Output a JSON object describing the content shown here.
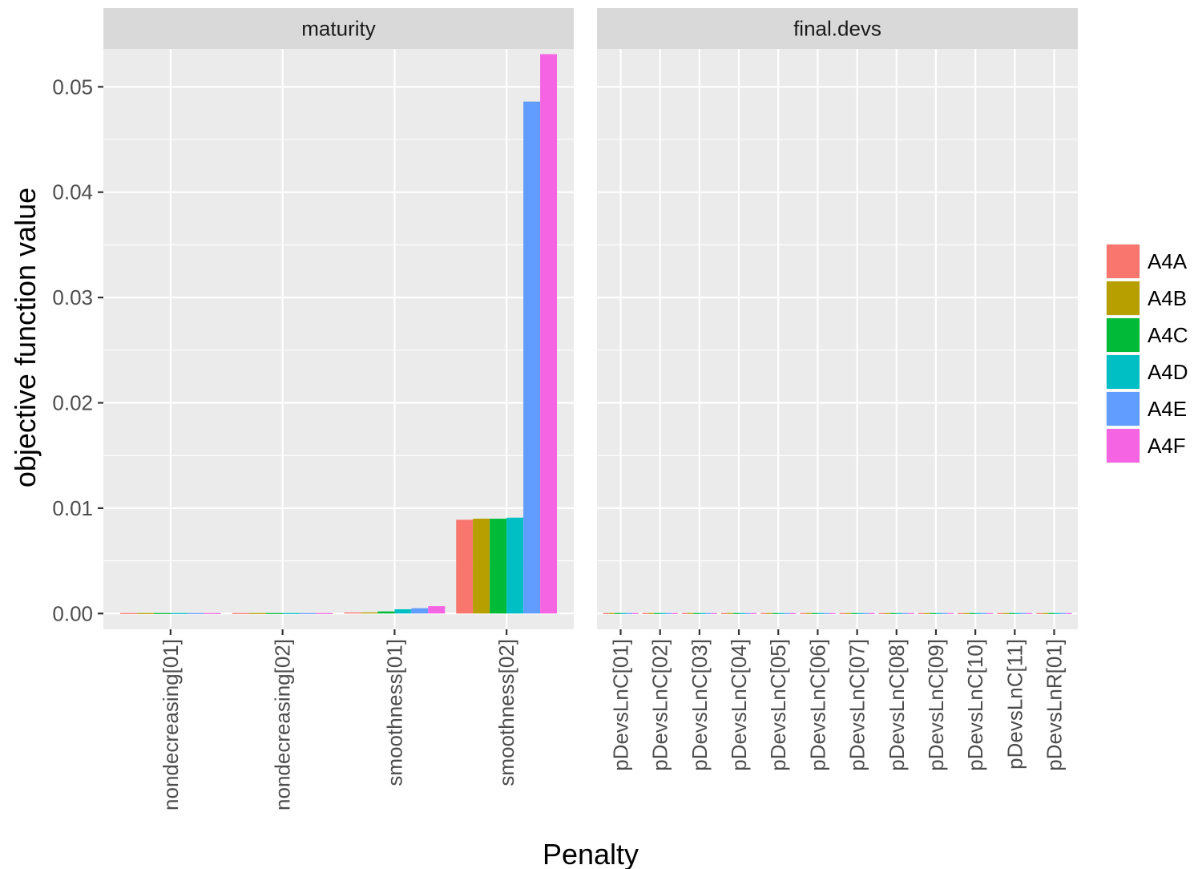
{
  "chart_data": {
    "type": "bar",
    "xlabel": "Penalty",
    "ylabel": "objective function value",
    "ylim": [
      -0.0015,
      0.0536
    ],
    "yticks": [
      0.0,
      0.01,
      0.02,
      0.03,
      0.04,
      0.05
    ],
    "ytick_labels": [
      "0.00",
      "0.01",
      "0.02",
      "0.03",
      "0.04",
      "0.05"
    ],
    "grid": true,
    "legend_position": "right",
    "series_names": [
      "A4A",
      "A4B",
      "A4C",
      "A4D",
      "A4E",
      "A4F"
    ],
    "colors": {
      "A4A": "#F8766D",
      "A4B": "#B79F00",
      "A4C": "#00BA38",
      "A4D": "#00BFC4",
      "A4E": "#619CFF",
      "A4F": "#F564E3"
    },
    "panels": [
      {
        "title": "maturity",
        "categories": [
          "nondecreasing[01]",
          "nondecreasing[02]",
          "smoothness[01]",
          "smoothness[02]"
        ],
        "series": [
          {
            "name": "A4A",
            "values": [
              0.0,
              0.0,
              0.0001,
              0.0089
            ]
          },
          {
            "name": "A4B",
            "values": [
              0.0,
              0.0,
              0.0001,
              0.009
            ]
          },
          {
            "name": "A4C",
            "values": [
              0.0,
              0.0,
              0.0002,
              0.009
            ]
          },
          {
            "name": "A4D",
            "values": [
              0.0,
              0.0,
              0.0004,
              0.0091
            ]
          },
          {
            "name": "A4E",
            "values": [
              0.0,
              0.0,
              0.0005,
              0.0486
            ]
          },
          {
            "name": "A4F",
            "values": [
              0.0,
              0.0,
              0.0007,
              0.0531
            ]
          }
        ]
      },
      {
        "title": "final.devs",
        "categories": [
          "pDevsLnC[01]",
          "pDevsLnC[02]",
          "pDevsLnC[03]",
          "pDevsLnC[04]",
          "pDevsLnC[05]",
          "pDevsLnC[06]",
          "pDevsLnC[07]",
          "pDevsLnC[08]",
          "pDevsLnC[09]",
          "pDevsLnC[10]",
          "pDevsLnC[11]",
          "pDevsLnR[01]"
        ],
        "series": [
          {
            "name": "A4A",
            "values": [
              0,
              0,
              0,
              0,
              0,
              0,
              0,
              0,
              0,
              0,
              0,
              0
            ]
          },
          {
            "name": "A4B",
            "values": [
              0,
              0,
              0,
              0,
              0,
              0,
              0,
              0,
              0,
              0,
              0,
              0
            ]
          },
          {
            "name": "A4C",
            "values": [
              0,
              0,
              0,
              0,
              0,
              0,
              0,
              0,
              0,
              0,
              0,
              0
            ]
          },
          {
            "name": "A4D",
            "values": [
              0,
              0,
              0,
              0,
              0,
              0,
              0,
              0,
              0,
              0,
              0,
              0
            ]
          },
          {
            "name": "A4E",
            "values": [
              0,
              0,
              0,
              0,
              0,
              0,
              0,
              0,
              0,
              0,
              0,
              0
            ]
          },
          {
            "name": "A4F",
            "values": [
              0,
              0,
              0,
              0,
              0,
              0,
              0,
              0,
              0,
              0,
              0,
              0
            ]
          }
        ]
      }
    ]
  }
}
